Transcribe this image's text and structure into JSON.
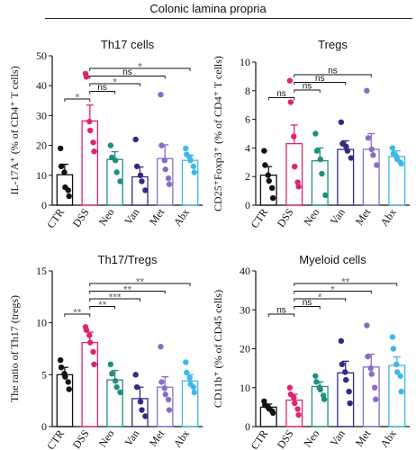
{
  "figure": {
    "title": "Colonic lamina propria"
  },
  "chart_data": [
    {
      "type": "bar",
      "title": "Th17 cells",
      "ylabel": "IL-17A⁺ (% of CD4⁺ T cells)",
      "xlabel": "",
      "categories": [
        "CTR",
        "DSS",
        "Neo",
        "Van",
        "Met",
        "Abx"
      ],
      "colors": [
        "#111111",
        "#e0246f",
        "#1f8f80",
        "#3b2781",
        "#8c6bc8",
        "#3fb8e6"
      ],
      "ylim": [
        0,
        50
      ],
      "yticks": [
        0,
        10,
        20,
        30,
        40,
        50
      ],
      "means": [
        10.2,
        28.2,
        15.3,
        9.5,
        15.6,
        15.0
      ],
      "errors": [
        3.5,
        5.3,
        2.6,
        3.3,
        4.6,
        1.8
      ],
      "points": [
        [
          19,
          13,
          11,
          6,
          5,
          3
        ],
        [
          44,
          43,
          28,
          25,
          21,
          18
        ],
        [
          20,
          16,
          15,
          11,
          8
        ],
        [
          22,
          13,
          10,
          8,
          5
        ],
        [
          37,
          20,
          15,
          12,
          9,
          7
        ],
        [
          19,
          17,
          16,
          15,
          13,
          11
        ]
      ],
      "comparisons": [
        {
          "from": 0,
          "to": 1,
          "label": "*"
        },
        {
          "from": 1,
          "to": 2,
          "label": "ns"
        },
        {
          "from": 1,
          "to": 3,
          "label": "*"
        },
        {
          "from": 1,
          "to": 4,
          "label": "ns"
        },
        {
          "from": 1,
          "to": 5,
          "label": "*"
        }
      ]
    },
    {
      "type": "bar",
      "title": "Tregs",
      "ylabel": "CD25⁺Foxp3⁺ (% of CD4⁺ T cells)",
      "xlabel": "",
      "categories": [
        "CTR",
        "DSS",
        "Neo",
        "Van",
        "Met",
        "Abx"
      ],
      "colors": [
        "#111111",
        "#e0246f",
        "#1f8f80",
        "#3b2781",
        "#8c6bc8",
        "#3fb8e6"
      ],
      "ylim": [
        0,
        10
      ],
      "yticks": [
        0,
        2,
        4,
        6,
        8,
        10
      ],
      "means": [
        2.1,
        4.3,
        3.1,
        3.9,
        3.9,
        3.4
      ],
      "errors": [
        0.6,
        1.3,
        0.9,
        0.6,
        1.1,
        0.4
      ],
      "points": [
        [
          3.8,
          2.8,
          2.1,
          1.7,
          1.2,
          0.5
        ],
        [
          8.7,
          7.2,
          4.8,
          2.7,
          1.6,
          1.3
        ],
        [
          5.0,
          3.8,
          3.2,
          2.2,
          0.7
        ],
        [
          5.8,
          4.3,
          4.1,
          3.8,
          3.3
        ],
        [
          8.0,
          4.7,
          3.9,
          3.5,
          2.8
        ],
        [
          4.0,
          3.6,
          3.4,
          3.2,
          3.0,
          2.9
        ]
      ],
      "comparisons": [
        {
          "from": 0,
          "to": 1,
          "label": "ns"
        },
        {
          "from": 1,
          "to": 2,
          "label": "ns"
        },
        {
          "from": 1,
          "to": 3,
          "label": "ns"
        },
        {
          "from": 1,
          "to": 4,
          "label": "ns"
        }
      ]
    },
    {
      "type": "bar",
      "title": "Th17/Tregs",
      "ylabel": "The ratio of Th17 (tregs)",
      "xlabel": "",
      "categories": [
        "CTR",
        "DSS",
        "Neo",
        "Van",
        "Met",
        "Abx"
      ],
      "colors": [
        "#111111",
        "#e0246f",
        "#1f8f80",
        "#3b2781",
        "#8c6bc8",
        "#3fb8e6"
      ],
      "ylim": [
        0,
        15
      ],
      "yticks": [
        0,
        5,
        10,
        15
      ],
      "means": [
        5.0,
        8.1,
        4.5,
        2.7,
        3.8,
        4.4
      ],
      "errors": [
        0.7,
        1.0,
        0.9,
        1.1,
        1.0,
        0.6
      ],
      "points": [
        [
          6.4,
          5.7,
          5.1,
          4.8,
          4.3,
          3.6
        ],
        [
          9.6,
          9.3,
          8.8,
          8.1,
          7.2,
          6.0
        ],
        [
          6.0,
          5.1,
          4.4,
          3.8,
          3.3
        ],
        [
          5.0,
          3.8,
          2.4,
          1.6,
          1.0
        ],
        [
          7.7,
          4.3,
          3.7,
          3.1,
          2.6,
          1.6
        ],
        [
          6.2,
          5.2,
          4.7,
          4.1,
          3.8,
          3.3
        ]
      ],
      "comparisons": [
        {
          "from": 0,
          "to": 1,
          "label": "**"
        },
        {
          "from": 1,
          "to": 2,
          "label": "**"
        },
        {
          "from": 1,
          "to": 3,
          "label": "***"
        },
        {
          "from": 1,
          "to": 4,
          "label": "**"
        },
        {
          "from": 1,
          "to": 5,
          "label": "**"
        }
      ]
    },
    {
      "type": "bar",
      "title": "Myeloid cells",
      "ylabel": "CD11b⁺ (% of CD45 cells)",
      "xlabel": "",
      "categories": [
        "CTR",
        "DSS",
        "Neo",
        "Van",
        "Met",
        "Abx"
      ],
      "colors": [
        "#111111",
        "#e0246f",
        "#1f8f80",
        "#3b2781",
        "#8c6bc8",
        "#3fb8e6"
      ],
      "ylim": [
        0,
        40
      ],
      "yticks": [
        0,
        10,
        20,
        30,
        40
      ],
      "means": [
        5.0,
        6.8,
        10.3,
        13.8,
        15.3,
        15.7
      ],
      "errors": [
        0.8,
        1.5,
        1.2,
        3.0,
        3.3,
        2.2
      ],
      "points": [
        [
          6.5,
          5.5,
          5.0,
          4.6,
          4.0,
          3.5
        ],
        [
          10.0,
          8.3,
          7.5,
          6.0,
          4.5,
          3.0
        ],
        [
          13.0,
          11.5,
          10.0,
          9.5,
          8.0,
          7.0
        ],
        [
          22.0,
          16.0,
          14.0,
          12.0,
          9.0,
          6.0
        ],
        [
          26.0,
          18.0,
          15.0,
          13.5,
          10.0,
          7.0
        ],
        [
          23.0,
          20.0,
          16.0,
          14.0,
          13.0,
          9.0
        ]
      ],
      "comparisons": [
        {
          "from": 0,
          "to": 1,
          "label": "ns"
        },
        {
          "from": 1,
          "to": 2,
          "label": "ns"
        },
        {
          "from": 1,
          "to": 3,
          "label": "*"
        },
        {
          "from": 1,
          "to": 4,
          "label": "*"
        },
        {
          "from": 1,
          "to": 5,
          "label": "**"
        }
      ]
    }
  ]
}
